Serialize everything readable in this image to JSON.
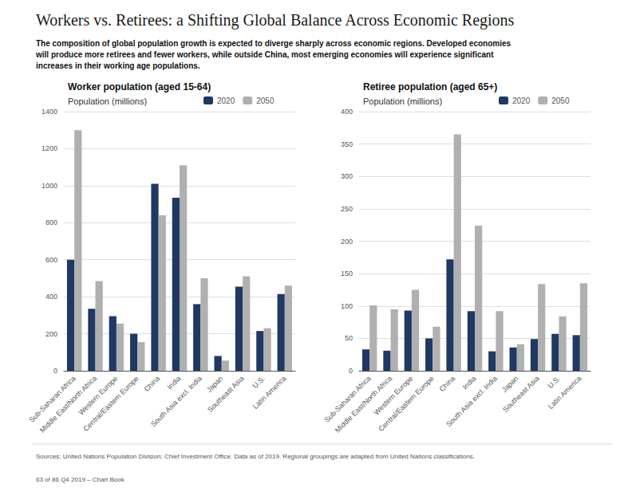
{
  "title": "Workers vs. Retirees: a Shifting Global Balance Across Economic Regions",
  "subtitle": [
    "The composition of global population growth is expected to diverge sharply across economic regions. Developed economies",
    "will produce more retirees and fewer workers, while outside China, most emerging economies will experience significant",
    "increases in their working age populations."
  ],
  "annotations": [
    "Sources: United Nations Population Division; Chief Investment Office. Data as of 2019. Regional groupings are adapted from United Nations classifications.",
    "63 of 86 Q4 2019 – Chart Book"
  ],
  "chart_data": [
    {
      "type": "bar",
      "title": "Worker population (aged 15-64)",
      "ylabel": "Population (millions)",
      "categories": [
        "Sub-Saharan Africa",
        "Middle East/North Africa",
        "Western Europe",
        "Central/Eastern Europe",
        "China",
        "India",
        "South Asia excl. India",
        "Japan",
        "Southeast Asia",
        "U.S.",
        "Latin America"
      ],
      "series": [
        {
          "name": "2020",
          "color": "#1f3864",
          "values": [
            600,
            335,
            295,
            200,
            1010,
            935,
            360,
            80,
            455,
            215,
            415
          ]
        },
        {
          "name": "2050",
          "color": "#b0b0b0",
          "values": [
            1300,
            485,
            255,
            155,
            840,
            1110,
            500,
            55,
            510,
            230,
            460
          ]
        }
      ],
      "ylim": [
        0,
        1400
      ],
      "yticks": [
        0,
        200,
        400,
        600,
        800,
        1000,
        1200,
        1400
      ],
      "grid": true,
      "legend": "top"
    },
    {
      "type": "bar",
      "title": "Retiree population (aged 65+)",
      "ylabel": "Population (millions)",
      "categories": [
        "Sub-Saharan Africa",
        "Middle East/North Africa",
        "Western Europe",
        "Central/Eastern Europe",
        "China",
        "India",
        "South Asia excl. India",
        "Japan",
        "Southeast Asia",
        "U.S.",
        "Latin America"
      ],
      "series": [
        {
          "name": "2020",
          "color": "#1f3864",
          "values": [
            33,
            31,
            93,
            50,
            172,
            92,
            30,
            36,
            49,
            57,
            55
          ]
        },
        {
          "name": "2050",
          "color": "#b0b0b0",
          "values": [
            101,
            95,
            125,
            68,
            365,
            224,
            92,
            41,
            134,
            84,
            135
          ]
        }
      ],
      "ylim": [
        0,
        400
      ],
      "yticks": [
        0,
        50,
        100,
        150,
        200,
        250,
        300,
        350,
        400
      ],
      "grid": true,
      "legend": "top"
    }
  ]
}
